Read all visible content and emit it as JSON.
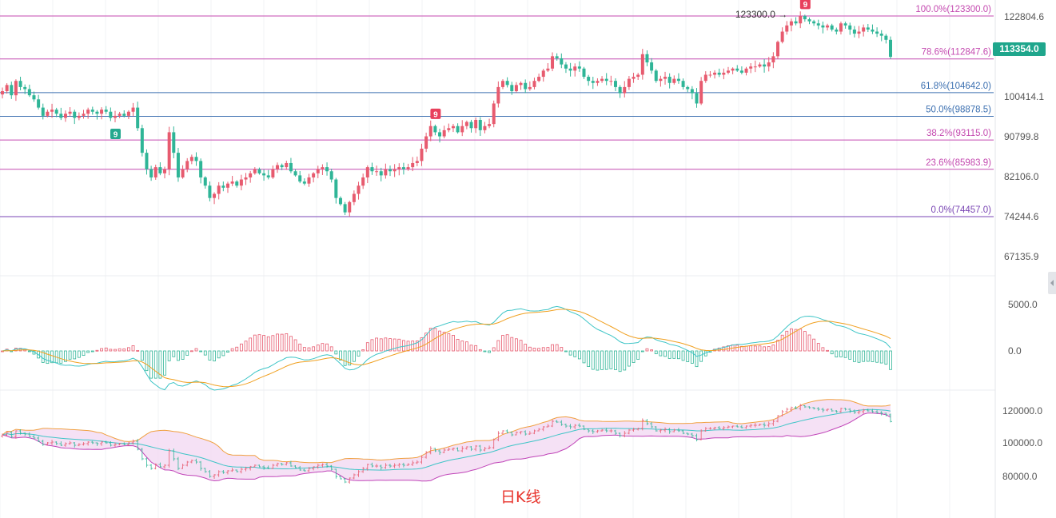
{
  "chart_data": {
    "type": "candlestick",
    "caption": "日K线",
    "last_price": "113354.0",
    "high_marker": "123300.0",
    "td_sequential_markers": [
      "9",
      "9",
      "9"
    ],
    "main_panel": {
      "y_ticks": [
        "122804.6",
        "100414.1",
        "90799.8",
        "82106.0",
        "74244.6",
        "67135.9"
      ],
      "fibonacci": [
        {
          "label": "100.0%(123300.0)",
          "price": 123300.0
        },
        {
          "label": "78.6%(112847.6)",
          "price": 112847.6
        },
        {
          "label": "61.8%(104642.0)",
          "price": 104642.0
        },
        {
          "label": "50.0%(98878.5)",
          "price": 98878.5
        },
        {
          "label": "38.2%(93115.0)",
          "price": 93115.0
        },
        {
          "label": "23.6%(85983.9)",
          "price": 85983.9
        },
        {
          "label": "0.0%(74457.0)",
          "price": 74457.0
        }
      ],
      "closes": [
        105000,
        106500,
        104000,
        107500,
        106000,
        105500,
        104000,
        103000,
        101000,
        99000,
        100000,
        100500,
        99500,
        98500,
        99500,
        100000,
        98500,
        99000,
        99500,
        100500,
        100000,
        99500,
        100500,
        100000,
        98500,
        99000,
        99500,
        99000,
        100000,
        101000,
        96000,
        90000,
        86000,
        84000,
        86500,
        85000,
        86000,
        95000,
        90000,
        84000,
        86000,
        88000,
        89000,
        88000,
        84000,
        82000,
        79000,
        80000,
        82000,
        81500,
        82500,
        83000,
        82000,
        83500,
        84000,
        85000,
        86000,
        85000,
        84500,
        84000,
        86000,
        87000,
        86500,
        87500,
        85500,
        84500,
        83000,
        82500,
        84000,
        85000,
        86000,
        86500,
        85500,
        83500,
        79000,
        77500,
        75500,
        78000,
        80000,
        82000,
        84000,
        86500,
        85500,
        85500,
        84500,
        86000,
        85500,
        86000,
        86500,
        86000,
        86500,
        87500,
        88000,
        91000,
        94000,
        96500,
        95000,
        94000,
        95500,
        96000,
        96500,
        95000,
        96500,
        97500,
        96000,
        98000,
        95500,
        96500,
        97000,
        102000,
        106000,
        107500,
        106500,
        105000,
        106500,
        107000,
        105500,
        106000,
        107500,
        108500,
        110000,
        110500,
        113500,
        113000,
        111500,
        110500,
        110000,
        111000,
        110500,
        108500,
        107500,
        107000,
        107500,
        108000,
        107500,
        107500,
        106000,
        104500,
        106000,
        108000,
        108500,
        109000,
        114000,
        112000,
        110000,
        107500,
        108000,
        108500,
        107000,
        108000,
        107500,
        106000,
        105500,
        104500,
        102000,
        107500,
        109000,
        109000,
        109500,
        109000,
        109500,
        110000,
        110500,
        110000,
        109500,
        110500,
        111000,
        111000,
        111500,
        111000,
        112000,
        113500,
        117000,
        119500,
        121000,
        122000,
        121500,
        123300,
        122500,
        122000,
        121500,
        121000,
        120500,
        121000,
        120000,
        119500,
        121500,
        121000,
        120000,
        119000,
        119500,
        120500,
        120000,
        119500,
        119000,
        118500,
        117500,
        113354
      ]
    },
    "macd_panel": {
      "y_ticks": [
        "5000.0",
        "0.0"
      ]
    },
    "boll_panel": {
      "y_ticks": [
        "120000.0",
        "100000.0",
        "80000.0"
      ]
    },
    "colors": {
      "up": "#e75b6f",
      "down": "#2fb597",
      "fib_low": "#7a46b4",
      "fib_high": "#c44ab0",
      "fib_mid": "#3b6fb0",
      "macd_dif": "#3ec5c7",
      "macd_dea": "#f0a020",
      "boll_fill": "#f3d9f2",
      "boll_upper": "#f0a040",
      "boll_lower": "#c044b8",
      "boll_mid": "#3ec5c7",
      "marker_red": "#e8405c",
      "marker_teal": "#26a88f"
    }
  }
}
